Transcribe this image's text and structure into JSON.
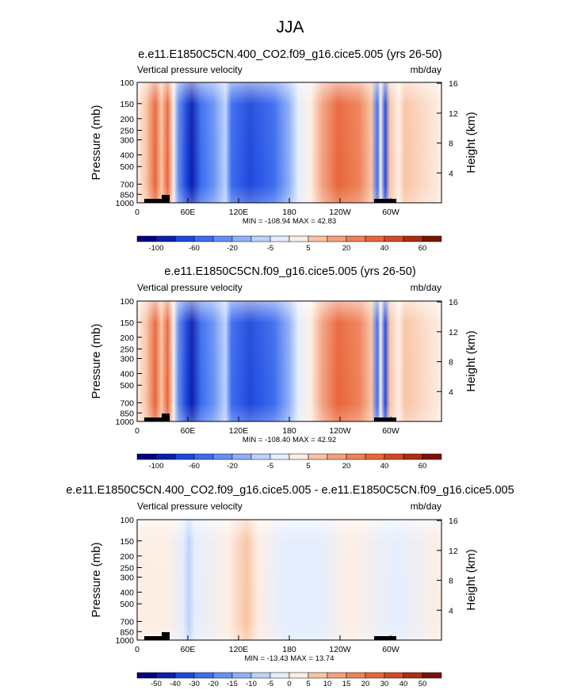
{
  "title": "JJA",
  "colors": {
    "positive": "#e8653a",
    "positive_light": "#f8c3a4",
    "negative": "#3c6cf0",
    "negative_dark": "#1530b0",
    "neutral": "#fdeee4",
    "topography": "#000000"
  },
  "colorbars": {
    "full": {
      "colors": [
        "#05007a",
        "#0a1fb0",
        "#1f48db",
        "#3c6cf0",
        "#6590f3",
        "#8fb0f6",
        "#bdd1fa",
        "#e4edfd",
        "#fdeee4",
        "#f8c3a4",
        "#f3a07d",
        "#ee8158",
        "#e8653a",
        "#d14a23",
        "#ab2e12",
        "#7a1205"
      ],
      "labels": [
        "-100",
        "-60",
        "-20",
        "-5",
        "5",
        "20",
        "40",
        "60"
      ]
    },
    "diff": {
      "colors": [
        "#05007a",
        "#0a1fb0",
        "#1f48db",
        "#3c6cf0",
        "#6590f3",
        "#8fb0f6",
        "#bdd1fa",
        "#e4edfd",
        "#fdeee4",
        "#f8c3a4",
        "#f3a07d",
        "#ee8158",
        "#e8653a",
        "#d14a23",
        "#ab2e12",
        "#7a1205"
      ],
      "labels": [
        "-50",
        "-40",
        "-30",
        "-20",
        "-15",
        "-10",
        "-5",
        "0",
        "5",
        "10",
        "15",
        "20",
        "30",
        "40",
        "50"
      ]
    }
  },
  "panels": [
    {
      "title": "e.e11.E1850C5CN.400_CO2.f09_g16.cice5.005 (yrs 26-50)",
      "left_label": "Vertical pressure velocity",
      "right_label": "mb/day",
      "ylabel": "Pressure (mb)",
      "ylabel_right": "Height (km)",
      "minmax": "MIN = -108.94  MAX =  42.83",
      "colorbar": "full"
    },
    {
      "title": "e.e11.E1850C5CN.f09_g16.cice5.005 (yrs 26-50)",
      "left_label": "Vertical pressure velocity",
      "right_label": "mb/day",
      "ylabel": "Pressure (mb)",
      "ylabel_right": "Height (km)",
      "minmax": "MIN = -108.40  MAX =  42.92",
      "colorbar": "full"
    },
    {
      "title": "e.e11.E1850C5CN.400_CO2.f09_g16.cice5.005 - e.e11.E1850C5CN.f09_g16.cice5.005",
      "left_label": "Vertical pressure velocity",
      "right_label": "mb/day",
      "ylabel": "Pressure (mb)",
      "ylabel_right": "Height (km)",
      "minmax": "MIN = -13.43  MAX =  13.74",
      "colorbar": "diff"
    }
  ],
  "chart_data": [
    {
      "type": "heatmap",
      "title": "e.e11.E1850C5CN.400_CO2.f09_g16.cice5.005 (yrs 26-50)",
      "variable": "Vertical pressure velocity",
      "units": "mb/day",
      "xlabel": "",
      "ylabel": "Pressure (mb)",
      "ylabel_right": "Height (km)",
      "x_ticks": [
        "0",
        "60E",
        "120E",
        "180",
        "120W",
        "60W"
      ],
      "x_tick_lon": [
        0,
        60,
        120,
        180,
        240,
        300
      ],
      "xlim": [
        0,
        360
      ],
      "y_ticks": [
        100,
        150,
        200,
        250,
        300,
        400,
        500,
        700,
        850,
        1000
      ],
      "ylim": [
        1000,
        100
      ],
      "y_scale": "log",
      "height_ticks_km": [
        4,
        8,
        12,
        16
      ],
      "min": -108.94,
      "max": 42.83,
      "colorbar_levels": [
        -100,
        -80,
        -60,
        -40,
        -20,
        -10,
        -5,
        0,
        5,
        10,
        20,
        30,
        40,
        50,
        60
      ],
      "features": [
        {
          "lon": [
            8,
            45
          ],
          "value": "positive",
          "amp": 20
        },
        {
          "lon": [
            50,
            100
          ],
          "value": "negative",
          "amp": -100
        },
        {
          "lon": [
            100,
            180
          ],
          "value": "negative",
          "amp": -40
        },
        {
          "lon": [
            200,
            270
          ],
          "value": "positive",
          "amp": 30
        },
        {
          "lon": [
            278,
            300
          ],
          "value": "negative",
          "amp": -60
        }
      ]
    },
    {
      "type": "heatmap",
      "title": "e.e11.E1850C5CN.f09_g16.cice5.005 (yrs 26-50)",
      "variable": "Vertical pressure velocity",
      "units": "mb/day",
      "xlabel": "",
      "ylabel": "Pressure (mb)",
      "ylabel_right": "Height (km)",
      "x_ticks": [
        "0",
        "60E",
        "120E",
        "180",
        "120W",
        "60W"
      ],
      "x_tick_lon": [
        0,
        60,
        120,
        180,
        240,
        300
      ],
      "xlim": [
        0,
        360
      ],
      "y_ticks": [
        100,
        150,
        200,
        250,
        300,
        400,
        500,
        700,
        850,
        1000
      ],
      "ylim": [
        1000,
        100
      ],
      "y_scale": "log",
      "height_ticks_km": [
        4,
        8,
        12,
        16
      ],
      "min": -108.4,
      "max": 42.92,
      "colorbar_levels": [
        -100,
        -80,
        -60,
        -40,
        -20,
        -10,
        -5,
        0,
        5,
        10,
        20,
        30,
        40,
        50,
        60
      ],
      "features": [
        {
          "lon": [
            8,
            45
          ],
          "value": "positive",
          "amp": 20
        },
        {
          "lon": [
            50,
            100
          ],
          "value": "negative",
          "amp": -100
        },
        {
          "lon": [
            100,
            180
          ],
          "value": "negative",
          "amp": -40
        },
        {
          "lon": [
            200,
            270
          ],
          "value": "positive",
          "amp": 30
        },
        {
          "lon": [
            278,
            300
          ],
          "value": "negative",
          "amp": -60
        }
      ]
    },
    {
      "type": "heatmap",
      "title": "e.e11.E1850C5CN.400_CO2.f09_g16.cice5.005 - e.e11.E1850C5CN.f09_g16.cice5.005",
      "variable": "Vertical pressure velocity",
      "units": "mb/day",
      "xlabel": "",
      "ylabel": "Pressure (mb)",
      "ylabel_right": "Height (km)",
      "x_ticks": [
        "0",
        "60E",
        "120E",
        "180",
        "120W",
        "60W"
      ],
      "x_tick_lon": [
        0,
        60,
        120,
        180,
        240,
        300
      ],
      "xlim": [
        0,
        360
      ],
      "y_ticks": [
        100,
        150,
        200,
        250,
        300,
        400,
        500,
        700,
        850,
        1000
      ],
      "ylim": [
        1000,
        100
      ],
      "y_scale": "log",
      "height_ticks_km": [
        4,
        8,
        12,
        16
      ],
      "min": -13.43,
      "max": 13.74,
      "colorbar_levels": [
        -50,
        -40,
        -30,
        -20,
        -15,
        -10,
        -5,
        0,
        5,
        10,
        15,
        20,
        30,
        40,
        50
      ],
      "features": [
        {
          "lon": [
            0,
            360
          ],
          "value": "near-zero",
          "amp": 2
        },
        {
          "lon": [
            50,
            70
          ],
          "value": "negative",
          "amp": -8
        }
      ]
    }
  ]
}
